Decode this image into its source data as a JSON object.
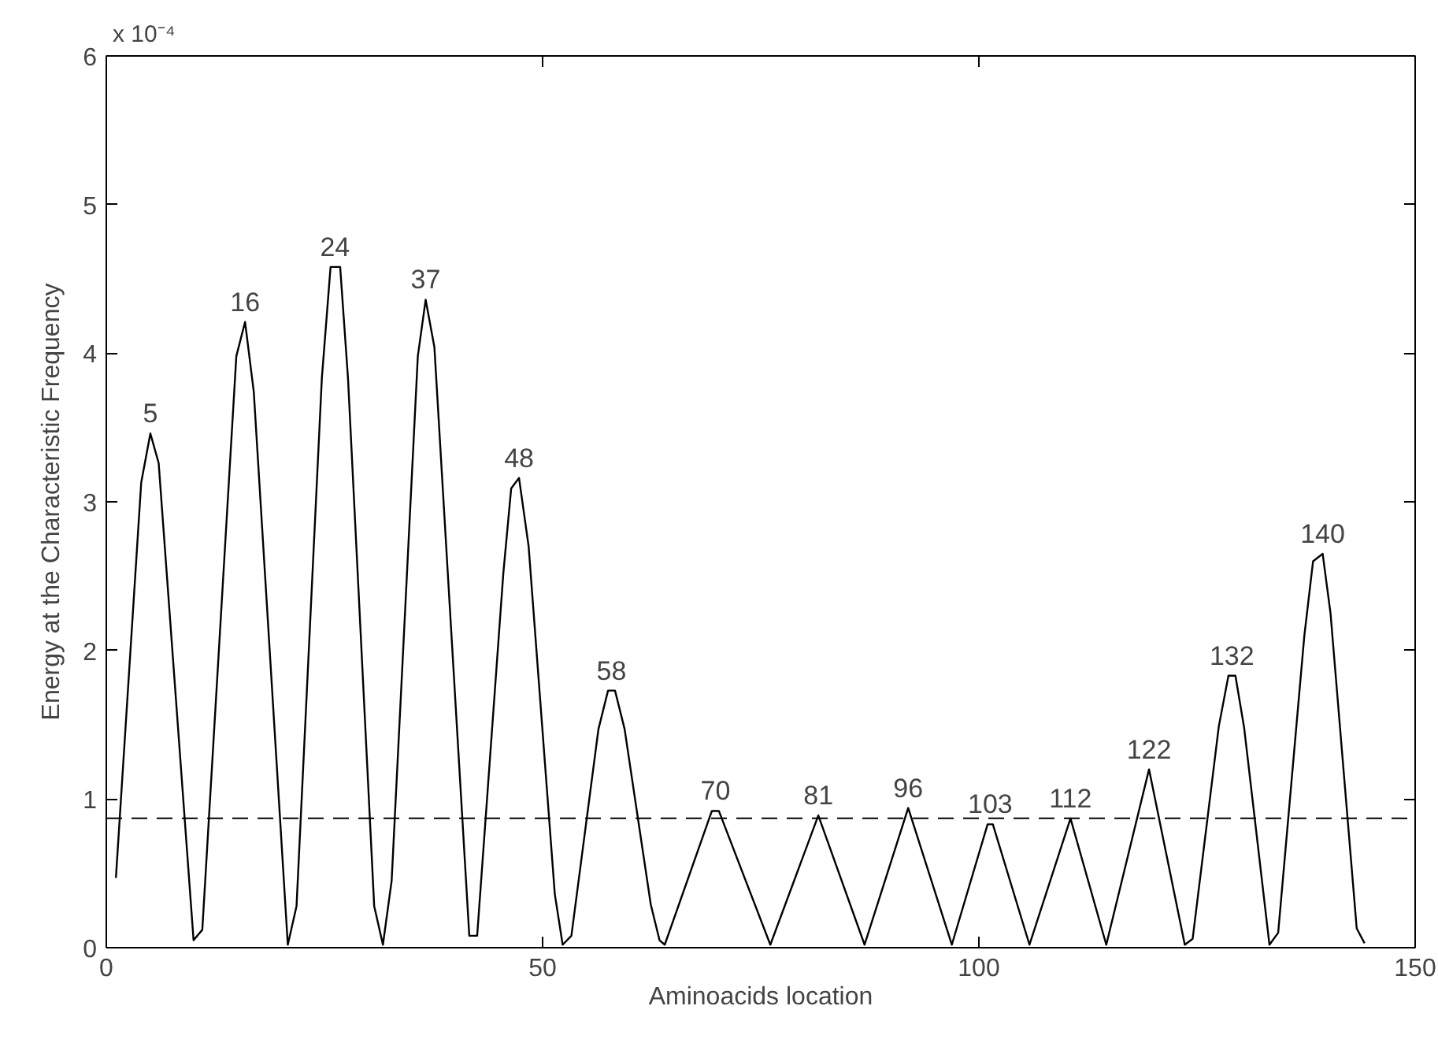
{
  "chart_data": {
    "type": "line",
    "xlabel": "Aminoacids location",
    "ylabel": "Energy at the Characteristic Frequency",
    "xlim": [
      0,
      150
    ],
    "ylim": [
      0,
      6
    ],
    "xticks": [
      0,
      50,
      100,
      150
    ],
    "yticks": [
      0,
      1,
      2,
      3,
      4,
      5,
      6
    ],
    "grid": false,
    "marker": "none",
    "line_style": "solid",
    "series": [
      {
        "color": "#000000",
        "x": [
          1.1,
          4.0,
          5.05,
          6.0,
          10.0,
          11.0,
          14.9,
          15.9,
          16.9,
          20.8,
          21.8,
          24.7,
          25.7,
          26.8,
          27.7,
          30.7,
          31.7,
          32.7,
          35.7,
          36.6,
          37.6,
          41.6,
          42.5,
          45.5,
          46.4,
          47.3,
          48.4,
          51.4,
          52.3,
          53.3,
          56.4,
          57.5,
          58.3,
          59.4,
          62.4,
          63.4,
          64.0,
          69.4,
          70.2,
          76.1,
          81.6,
          86.9,
          91.9,
          96.9,
          101.0,
          101.6,
          105.8,
          110.5,
          114.6,
          119.5,
          123.6,
          124.5,
          127.5,
          128.6,
          129.4,
          130.4,
          133.3,
          134.3,
          137.3,
          138.3,
          139.4,
          140.3,
          143.3,
          144.2
        ],
        "values": [
          0.47,
          3.13,
          3.46,
          3.26,
          0.05,
          0.12,
          3.98,
          4.21,
          3.74,
          0.02,
          0.28,
          3.83,
          4.58,
          4.58,
          3.83,
          0.28,
          0.02,
          0.45,
          3.98,
          4.36,
          4.04,
          0.08,
          0.08,
          2.52,
          3.09,
          3.16,
          2.7,
          0.36,
          0.02,
          0.08,
          1.47,
          1.73,
          1.73,
          1.47,
          0.29,
          0.05,
          0.02,
          0.92,
          0.92,
          0.02,
          0.89,
          0.02,
          0.94,
          0.02,
          0.83,
          0.83,
          0.02,
          0.87,
          0.02,
          1.2,
          0.02,
          0.06,
          1.49,
          1.83,
          1.83,
          1.48,
          0.02,
          0.1,
          2.1,
          2.6,
          2.65,
          2.25,
          0.13,
          0.03
        ]
      }
    ],
    "ref_lines": [
      {
        "axis": "y",
        "value": 0.87,
        "color": "#000000",
        "line_style": "dashed"
      }
    ],
    "annotations": [
      "x 10⁻⁴",
      {
        "text": "5",
        "x": 5.05,
        "y": 3.46
      },
      {
        "text": "16",
        "x": 15.9,
        "y": 4.21
      },
      {
        "text": "24",
        "x": 26.2,
        "y": 4.58
      },
      {
        "text": "37",
        "x": 36.6,
        "y": 4.36
      },
      {
        "text": "48",
        "x": 47.3,
        "y": 3.16
      },
      {
        "text": "58",
        "x": 57.9,
        "y": 1.73
      },
      {
        "text": "70",
        "x": 69.8,
        "y": 0.92
      },
      {
        "text": "81",
        "x": 81.6,
        "y": 0.89
      },
      {
        "text": "96",
        "x": 91.9,
        "y": 0.94
      },
      {
        "text": "103",
        "x": 101.3,
        "y": 0.83
      },
      {
        "text": "112",
        "x": 110.5,
        "y": 0.87
      },
      {
        "text": "122",
        "x": 119.5,
        "y": 1.2
      },
      {
        "text": "132",
        "x": 129.0,
        "y": 1.83
      },
      {
        "text": "140",
        "x": 139.4,
        "y": 2.65
      }
    ]
  }
}
